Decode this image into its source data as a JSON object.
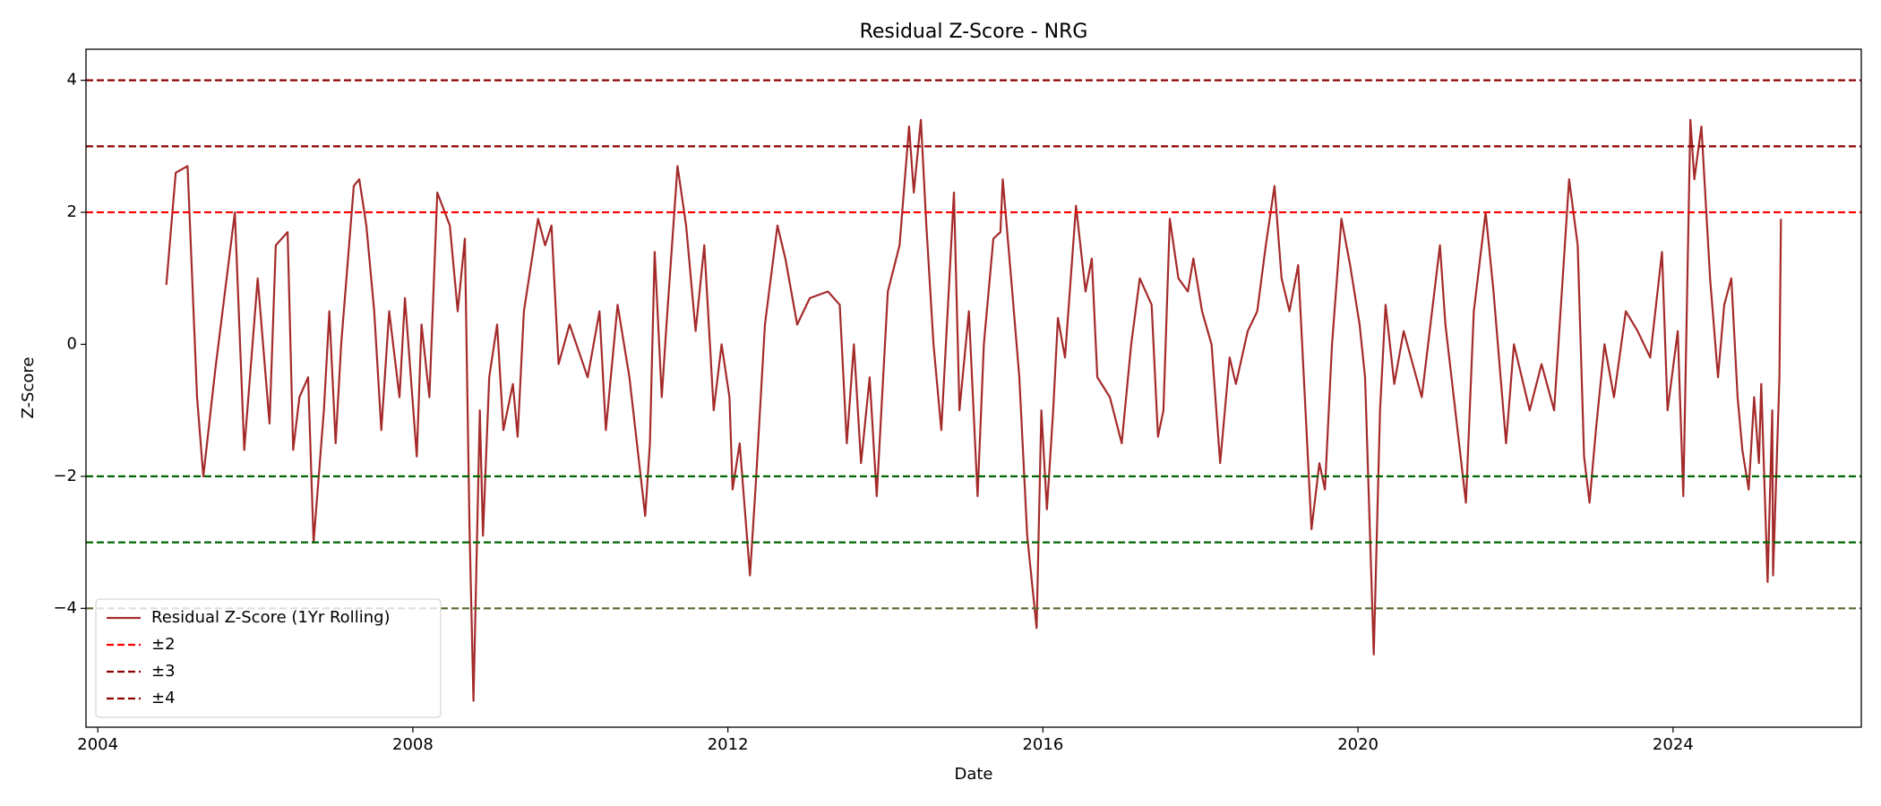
{
  "chart_data": {
    "type": "line",
    "title": "Residual Z-Score - NRG",
    "x_label": "Date",
    "y_label": "Z-Score",
    "x": [
      2004.87,
      2004.99,
      2005.14,
      2005.26,
      2005.34,
      2005.49,
      2005.74,
      2005.86,
      2006.03,
      2006.18,
      2006.26,
      2006.41,
      2006.48,
      2006.56,
      2006.67,
      2006.74,
      2006.87,
      2006.94,
      2007.02,
      2007.09,
      2007.25,
      2007.32,
      2007.41,
      2007.51,
      2007.6,
      2007.7,
      2007.83,
      2007.9,
      2008.05,
      2008.11,
      2008.21,
      2008.31,
      2008.47,
      2008.57,
      2008.66,
      2008.72,
      2008.77,
      2008.85,
      2008.89,
      2008.97,
      2009.07,
      2009.15,
      2009.27,
      2009.33,
      2009.41,
      2009.59,
      2009.68,
      2009.76,
      2009.85,
      2009.99,
      2010.22,
      2010.37,
      2010.45,
      2010.6,
      2010.75,
      2010.95,
      2011.01,
      2011.07,
      2011.16,
      2011.22,
      2011.36,
      2011.47,
      2011.59,
      2011.7,
      2011.82,
      2011.92,
      2012.02,
      2012.06,
      2012.15,
      2012.28,
      2012.35,
      2012.47,
      2012.63,
      2012.73,
      2012.88,
      2013.04,
      2013.27,
      2013.42,
      2013.51,
      2013.6,
      2013.69,
      2013.8,
      2013.89,
      2014.03,
      2014.18,
      2014.3,
      2014.36,
      2014.45,
      2014.52,
      2014.61,
      2014.71,
      2014.79,
      2014.87,
      2014.94,
      2015.06,
      2015.17,
      2015.25,
      2015.37,
      2015.46,
      2015.49,
      2015.61,
      2015.7,
      2015.8,
      2015.92,
      2015.98,
      2016.05,
      2016.13,
      2016.19,
      2016.28,
      2016.42,
      2016.54,
      2016.62,
      2016.69,
      2016.85,
      2017.0,
      2017.12,
      2017.23,
      2017.38,
      2017.46,
      2017.53,
      2017.61,
      2017.72,
      2017.84,
      2017.91,
      2018.02,
      2018.14,
      2018.25,
      2018.37,
      2018.45,
      2018.6,
      2018.72,
      2018.83,
      2018.94,
      2019.03,
      2019.13,
      2019.24,
      2019.41,
      2019.51,
      2019.58,
      2019.67,
      2019.79,
      2019.9,
      2020.02,
      2020.09,
      2020.2,
      2020.28,
      2020.35,
      2020.46,
      2020.58,
      2020.81,
      2021.04,
      2021.11,
      2021.37,
      2021.47,
      2021.62,
      2021.72,
      2021.88,
      2021.98,
      2022.18,
      2022.33,
      2022.49,
      2022.68,
      2022.79,
      2022.87,
      2022.94,
      2023.02,
      2023.13,
      2023.25,
      2023.4,
      2023.55,
      2023.71,
      2023.86,
      2023.93,
      2024.06,
      2024.13,
      2024.22,
      2024.27,
      2024.36,
      2024.47,
      2024.57,
      2024.65,
      2024.74,
      2024.82,
      2024.88,
      2024.96,
      2025.03,
      2025.09,
      2025.12,
      2025.2,
      2025.26,
      2025.27,
      2025.35,
      2025.37
    ],
    "series": [
      {
        "name": "Residual Z-Score (1Yr Rolling)",
        "color": "#a52a2a",
        "values": [
          0.9,
          2.6,
          2.7,
          -0.8,
          -2.0,
          -0.4,
          2.0,
          -1.6,
          1.0,
          -1.2,
          1.5,
          1.7,
          -1.6,
          -0.8,
          -0.5,
          -3.0,
          -1.0,
          0.5,
          -1.5,
          0.0,
          2.4,
          2.5,
          1.8,
          0.5,
          -1.3,
          0.5,
          -0.8,
          0.7,
          -1.7,
          0.3,
          -0.8,
          2.3,
          1.8,
          0.5,
          1.6,
          -2.8,
          -5.4,
          -1.0,
          -2.9,
          -0.5,
          0.3,
          -1.3,
          -0.6,
          -1.4,
          0.5,
          1.9,
          1.5,
          1.8,
          -0.3,
          0.3,
          -0.5,
          0.5,
          -1.3,
          0.6,
          -0.5,
          -2.6,
          -1.5,
          1.4,
          -0.8,
          0.3,
          2.7,
          1.8,
          0.2,
          1.5,
          -1.0,
          0.0,
          -0.8,
          -2.2,
          -1.5,
          -3.5,
          -2.2,
          0.3,
          1.8,
          1.3,
          0.3,
          0.7,
          0.8,
          0.6,
          -1.5,
          0.0,
          -1.8,
          -0.5,
          -2.3,
          0.8,
          1.5,
          3.3,
          2.3,
          3.4,
          1.8,
          0.0,
          -1.3,
          0.5,
          2.3,
          -1.0,
          0.5,
          -2.3,
          0.0,
          1.6,
          1.7,
          2.5,
          0.8,
          -0.5,
          -2.9,
          -4.3,
          -1.0,
          -2.5,
          -1.0,
          0.4,
          -0.2,
          2.1,
          0.8,
          1.3,
          -0.5,
          -0.8,
          -1.5,
          0.0,
          1.0,
          0.6,
          -1.4,
          -1.0,
          1.9,
          1.0,
          0.8,
          1.3,
          0.5,
          0.0,
          -1.8,
          -0.2,
          -0.6,
          0.2,
          0.5,
          1.5,
          2.4,
          1.0,
          0.5,
          1.2,
          -2.8,
          -1.8,
          -2.2,
          0.0,
          1.9,
          1.2,
          0.3,
          -0.5,
          -4.7,
          -1.0,
          0.6,
          -0.6,
          0.2,
          -0.8,
          1.5,
          0.3,
          -2.4,
          0.5,
          2.0,
          0.8,
          -1.5,
          0.0,
          -1.0,
          -0.3,
          -1.0,
          2.5,
          1.5,
          -1.7,
          -2.4,
          -1.3,
          0.0,
          -0.8,
          0.5,
          0.2,
          -0.2,
          1.4,
          -1.0,
          0.2,
          -2.3,
          3.4,
          2.5,
          3.3,
          1.0,
          -0.5,
          0.6,
          1.0,
          -0.8,
          -1.6,
          -2.2,
          -0.8,
          -1.8,
          -0.6,
          -3.6,
          -1.0,
          -3.5,
          -0.5,
          1.9
        ]
      }
    ],
    "reference_lines": [
      {
        "name": "±2",
        "color": "#ff0000",
        "levels": [
          2,
          -2
        ],
        "level_colors": [
          "#ff0000",
          "#006400"
        ]
      },
      {
        "name": "±3",
        "color": "#8b0000",
        "levels": [
          3,
          -3
        ],
        "level_colors": [
          "#8b0000",
          "#006400"
        ]
      },
      {
        "name": "±4",
        "color": "#8b0000",
        "levels": [
          4,
          -4
        ],
        "level_colors": [
          "#8b0000",
          "#556b2f"
        ]
      }
    ],
    "xlim": [
      2003.85,
      2026.39
    ],
    "ylim": [
      -5.8,
      4.47
    ],
    "xticks": [
      2004,
      2008,
      2012,
      2016,
      2020,
      2024
    ],
    "yticks": [
      {
        "value": -4,
        "label": "−4"
      },
      {
        "value": -2,
        "label": "−2"
      },
      0,
      2,
      4
    ],
    "legend": "lower left"
  }
}
